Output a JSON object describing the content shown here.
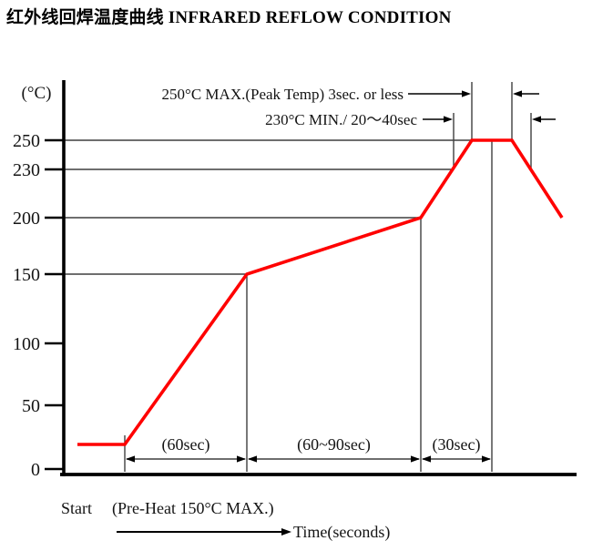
{
  "title": "红外线回焊温度曲线 INFRARED REFLOW CONDITION",
  "colors": {
    "curve": "#ff0000",
    "axis": "#000000",
    "dimension": "#3f3f3f",
    "text": "#141414"
  },
  "chart_data": {
    "type": "line",
    "title": "红外线回焊温度曲线 INFRARED REFLOW CONDITION",
    "ylabel": "(°C)",
    "xlabel": "Time(seconds)",
    "y_ticks": [
      250,
      230,
      200,
      150,
      100,
      50,
      0
    ],
    "ylim": [
      0,
      290
    ],
    "legend": "none",
    "grid": "horizontal reference lines at 150, 200, 230, 250 drawn from axis to curve",
    "series": [
      {
        "name": "infrared-reflow-profile",
        "color": "#ff0000",
        "points": [
          {
            "id": "start",
            "temp": 25
          },
          {
            "id": "ramp-begin",
            "temp": 25
          },
          {
            "id": "preheat-150",
            "temp": 150
          },
          {
            "id": "soak-200",
            "temp": 200
          },
          {
            "id": "peak-start",
            "temp": 250
          },
          {
            "id": "peak-end",
            "temp": 250
          },
          {
            "id": "cool-end",
            "temp": 200
          }
        ]
      }
    ],
    "segment_labels": [
      {
        "label": "(60sec)",
        "from": "ramp-begin",
        "to": "preheat-150"
      },
      {
        "label": "(60~90sec)",
        "from": "preheat-150",
        "to": "soak-200"
      },
      {
        "label": "(30sec)",
        "from": "soak-200",
        "to": "peak-mid"
      }
    ],
    "annotations": [
      {
        "label": "250°C MAX.(Peak Temp) 3sec. or less",
        "level": 250
      },
      {
        "label": "230°C MIN./ 20～40sec",
        "level": 230
      }
    ],
    "footer": {
      "start_label": "Start",
      "preheat_label": "(Pre-Heat 150°C MAX.)",
      "time_label": "Time(seconds)"
    }
  }
}
